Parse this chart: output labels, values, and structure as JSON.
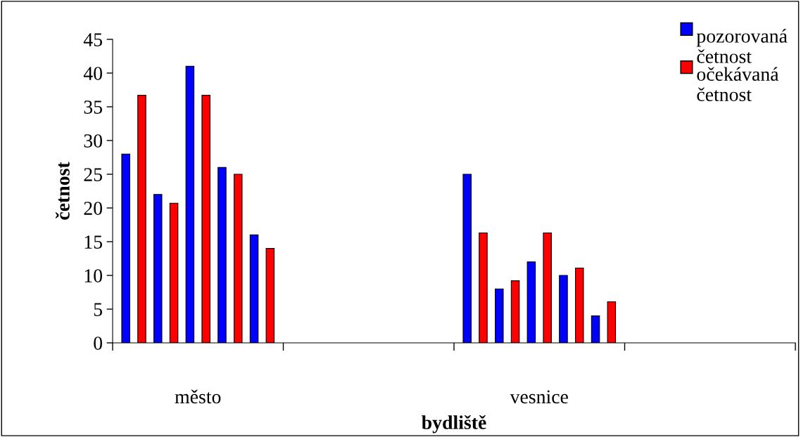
{
  "chart_data": {
    "type": "bar",
    "xlabel": "bydliště",
    "ylabel": "četnost",
    "categories": [
      "město",
      null,
      "vesnice",
      null
    ],
    "series": [
      {
        "name": "pozorovaná četnost",
        "color": "#0000ff",
        "values": [
          28,
          null,
          25,
          null
        ]
      },
      {
        "name": "očekávaná četnost",
        "color": "#ff0000",
        "values": [
          36.7,
          null,
          16.3,
          null
        ]
      },
      {
        "color": "#0000ff",
        "values": [
          22,
          null,
          8,
          null
        ]
      },
      {
        "color": "#ff0000",
        "values": [
          20.7,
          null,
          9.2,
          null
        ]
      },
      {
        "color": "#0000ff",
        "values": [
          41,
          null,
          12,
          null
        ]
      },
      {
        "color": "#ff0000",
        "values": [
          36.7,
          null,
          16.3,
          null
        ]
      },
      {
        "color": "#0000ff",
        "values": [
          26,
          null,
          10,
          null
        ]
      },
      {
        "color": "#ff0000",
        "values": [
          25,
          null,
          11.1,
          null
        ]
      },
      {
        "color": "#0000ff",
        "values": [
          16,
          null,
          4,
          null
        ]
      },
      {
        "color": "#ff0000",
        "values": [
          14,
          null,
          6.1,
          null
        ]
      }
    ],
    "ylim": [
      0,
      45
    ],
    "yticks": [
      0,
      5,
      10,
      15,
      20,
      25,
      30,
      35,
      40,
      45
    ],
    "grid": false,
    "legend": "top right"
  }
}
